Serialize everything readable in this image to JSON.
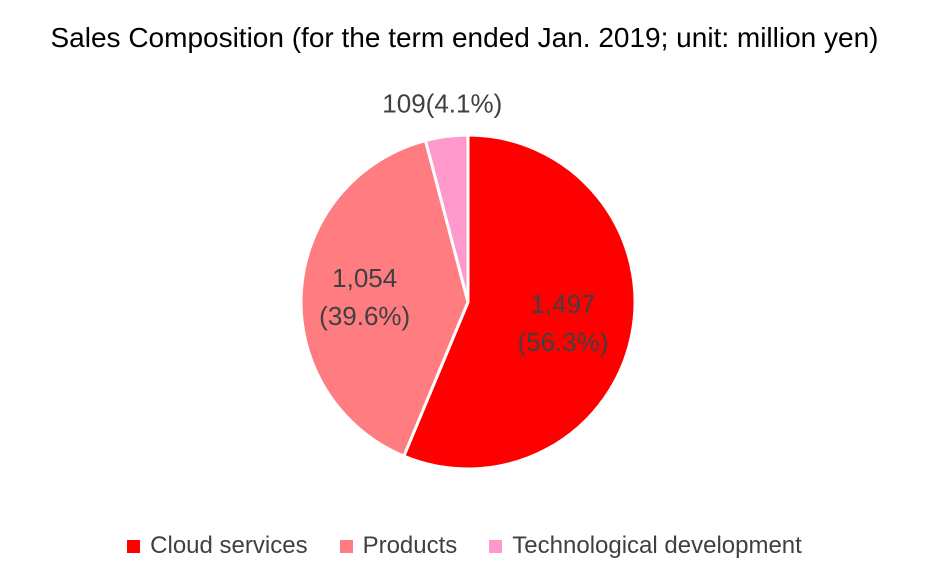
{
  "chart_data": {
    "type": "pie",
    "title": "Sales Composition (for the term ended Jan. 2019; unit: million yen)",
    "slices": [
      {
        "name": "Cloud services",
        "value": 1497,
        "percent": 56.3,
        "value_label": "1,497",
        "percent_label": "(56.3%)",
        "color": "#ff0000"
      },
      {
        "name": "Products",
        "value": 1054,
        "percent": 39.6,
        "value_label": "1,054",
        "percent_label": "(39.6%)",
        "color": "#ff7c80"
      },
      {
        "name": "Technological development",
        "value": 109,
        "percent": 4.1,
        "value_label": "109",
        "percent_label": "(4.1%)",
        "color": "#ff99cc"
      }
    ],
    "legend_position": "bottom"
  }
}
